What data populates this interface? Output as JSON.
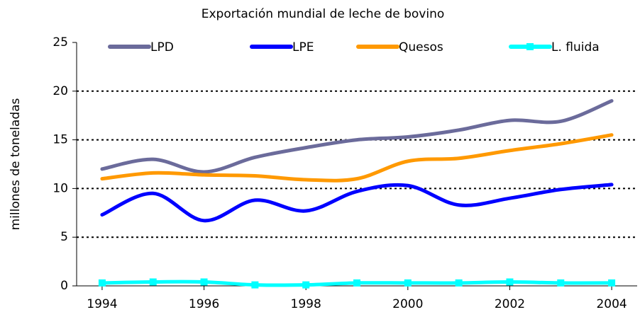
{
  "chart_data": {
    "type": "line",
    "title": "Exportación mundial de leche de bovino",
    "y_label": "millones de toneladas",
    "x": [
      1994,
      1995,
      1996,
      1997,
      1998,
      1999,
      2000,
      2001,
      2002,
      2003,
      2004
    ],
    "series": [
      {
        "name": "LPD",
        "color": "#6b6b9b",
        "values": [
          12,
          13,
          11.7,
          13.2,
          14.2,
          15,
          15.3,
          16,
          17,
          16.9,
          19
        ]
      },
      {
        "name": "LPE",
        "color": "#0000ff",
        "values": [
          7.3,
          9.5,
          6.7,
          8.8,
          7.7,
          9.7,
          10.3,
          8.3,
          9,
          9.9,
          10.4
        ]
      },
      {
        "name": "Quesos",
        "color": "#ff9900",
        "values": [
          11,
          11.6,
          11.4,
          11.3,
          10.9,
          11,
          12.8,
          13.1,
          13.9,
          14.6,
          15.5
        ]
      },
      {
        "name": "L. fluida",
        "color": "#00ffff",
        "values": [
          0.3,
          0.4,
          0.4,
          0.1,
          0.1,
          0.3,
          0.3,
          0.3,
          0.4,
          0.3,
          0.3
        ],
        "markers": "square"
      }
    ],
    "xlim": [
      1993.5,
      2004.5
    ],
    "xticks": [
      1994,
      1996,
      1998,
      2000,
      2002,
      2004
    ],
    "ylim": [
      0,
      25
    ],
    "yticks": [
      0,
      5,
      10,
      15,
      20,
      25
    ],
    "grid": true,
    "legend": "top"
  }
}
